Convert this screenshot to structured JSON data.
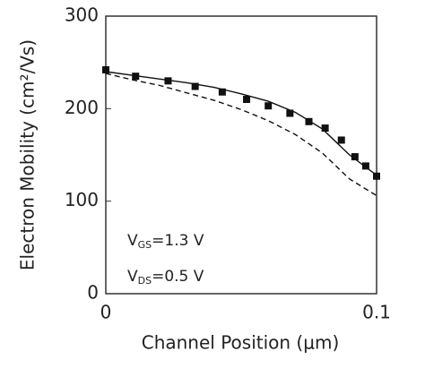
{
  "chart_data": {
    "type": "line",
    "xlabel": "Channel Position (μm)",
    "ylabel": "Electron Mobility (cm²/Vs)",
    "xlim": [
      0,
      0.1
    ],
    "ylim": [
      0,
      300
    ],
    "xticks": [
      0,
      0.1
    ],
    "yticks": [
      0,
      100,
      200,
      300
    ],
    "annotations": [
      {
        "main": "V",
        "sub": "GS",
        "rest": "=1.3  V"
      },
      {
        "main": "V",
        "sub": "DS",
        "rest": "=0.5  V"
      }
    ],
    "series": [
      {
        "style": "markers",
        "color": "#111111",
        "x": [
          0,
          0.011,
          0.023,
          0.033,
          0.043,
          0.052,
          0.06,
          0.068,
          0.075,
          0.081,
          0.087,
          0.092,
          0.096,
          0.1
        ],
        "values": [
          242,
          235,
          230,
          224,
          218,
          210,
          203,
          195,
          186,
          179,
          166,
          148,
          138,
          127
        ]
      },
      {
        "style": "solid",
        "color": "#111111",
        "x": [
          0,
          0.01,
          0.02,
          0.03,
          0.04,
          0.05,
          0.06,
          0.07,
          0.08,
          0.09,
          0.1
        ],
        "values": [
          240,
          236,
          232,
          228,
          223,
          216,
          208,
          196,
          178,
          150,
          128
        ]
      },
      {
        "style": "dashed",
        "color": "#111111",
        "x": [
          0,
          0.01,
          0.02,
          0.03,
          0.04,
          0.05,
          0.06,
          0.07,
          0.08,
          0.09,
          0.1
        ],
        "values": [
          238,
          231,
          225,
          217,
          209,
          199,
          187,
          172,
          152,
          124,
          106
        ]
      }
    ]
  }
}
